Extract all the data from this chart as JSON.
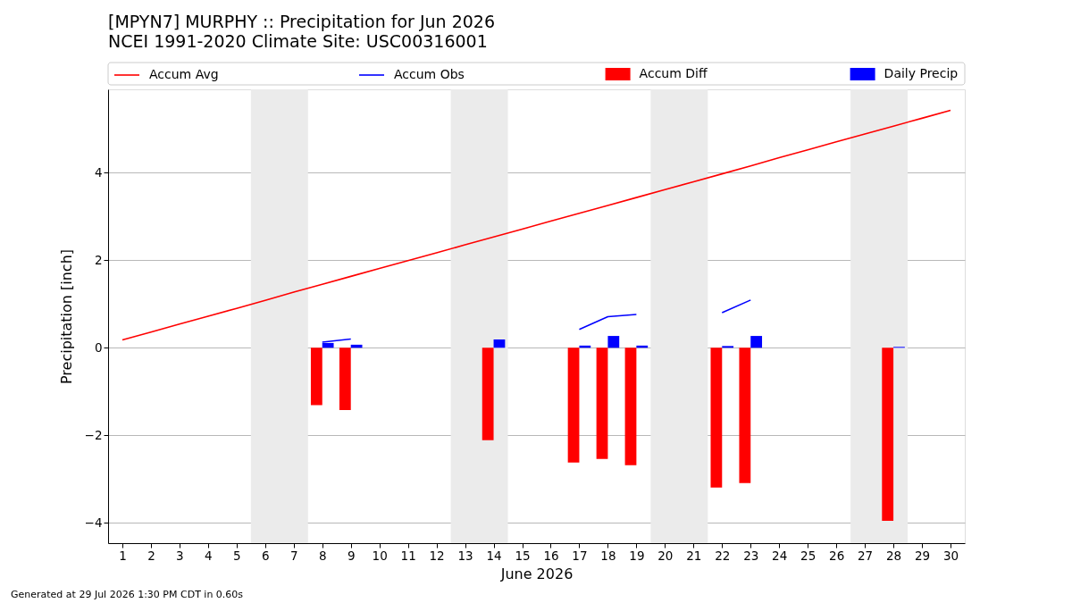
{
  "chart_data": {
    "type": "bar",
    "title": "[MPYN7] MURPHY :: Precipitation for Jun 2026",
    "subtitle": "NCEI 1991-2020 Climate Site: USC00316001",
    "xlabel": "June 2026",
    "ylabel": "Precipitation [inch]",
    "x": [
      1,
      2,
      3,
      4,
      5,
      6,
      7,
      8,
      9,
      10,
      11,
      12,
      13,
      14,
      15,
      16,
      17,
      18,
      19,
      20,
      21,
      22,
      23,
      24,
      25,
      26,
      27,
      28,
      29,
      30
    ],
    "series": [
      {
        "name": "Accum Avg",
        "type": "line",
        "color": "#ff0000",
        "values": [
          0.18,
          0.36,
          0.54,
          0.72,
          0.9,
          1.08,
          1.27,
          1.45,
          1.63,
          1.81,
          1.99,
          2.17,
          2.35,
          2.53,
          2.71,
          2.89,
          3.07,
          3.25,
          3.43,
          3.61,
          3.79,
          3.97,
          4.15,
          4.34,
          4.52,
          4.7,
          4.88,
          5.06,
          5.24,
          5.42
        ]
      },
      {
        "name": "Accum Obs",
        "type": "line",
        "color": "#0000ff",
        "values": [
          null,
          null,
          null,
          null,
          null,
          null,
          null,
          0.13,
          0.2,
          null,
          null,
          null,
          null,
          null,
          null,
          null,
          0.42,
          0.71,
          0.76,
          null,
          null,
          0.8,
          1.09,
          null,
          null,
          null,
          null,
          null,
          null,
          null
        ]
      },
      {
        "name": "Accum Diff",
        "color": "#ff0000",
        "values": [
          null,
          null,
          null,
          null,
          null,
          null,
          null,
          -1.31,
          -1.42,
          null,
          null,
          null,
          null,
          -2.11,
          null,
          null,
          -2.62,
          -2.54,
          -2.68,
          null,
          null,
          -3.19,
          -3.09,
          null,
          null,
          null,
          null,
          -3.95,
          null,
          null
        ]
      },
      {
        "name": "Daily Precip",
        "color": "#0000ff",
        "values": [
          null,
          null,
          null,
          null,
          null,
          null,
          null,
          0.11,
          0.07,
          null,
          null,
          null,
          null,
          0.19,
          null,
          null,
          0.05,
          0.27,
          0.05,
          null,
          null,
          0.04,
          0.27,
          null,
          null,
          null,
          null,
          0.02,
          null,
          null
        ]
      }
    ],
    "xlim": [
      0.5,
      30.5
    ],
    "ylim": [
      -4.46,
      5.9
    ],
    "xticks": [
      1,
      2,
      3,
      4,
      5,
      6,
      7,
      8,
      9,
      10,
      11,
      12,
      13,
      14,
      15,
      16,
      17,
      18,
      19,
      20,
      21,
      22,
      23,
      24,
      25,
      26,
      27,
      28,
      29,
      30
    ],
    "yticks": [
      -4,
      -2,
      0,
      2,
      4
    ],
    "bands": [
      {
        "axis": "x",
        "from": 5.5,
        "to": 7.5,
        "color": "#ebebeb"
      },
      {
        "axis": "x",
        "from": 12.5,
        "to": 14.5,
        "color": "#ebebeb"
      },
      {
        "axis": "x",
        "from": 19.5,
        "to": 21.5,
        "color": "#ebebeb"
      },
      {
        "axis": "x",
        "from": 26.5,
        "to": 28.5,
        "color": "#ebebeb"
      }
    ],
    "grid": "y",
    "legend": "top",
    "annotations": [
      "Generated at 29 Jul 2026 1:30 PM CDT in 0.60s"
    ]
  }
}
